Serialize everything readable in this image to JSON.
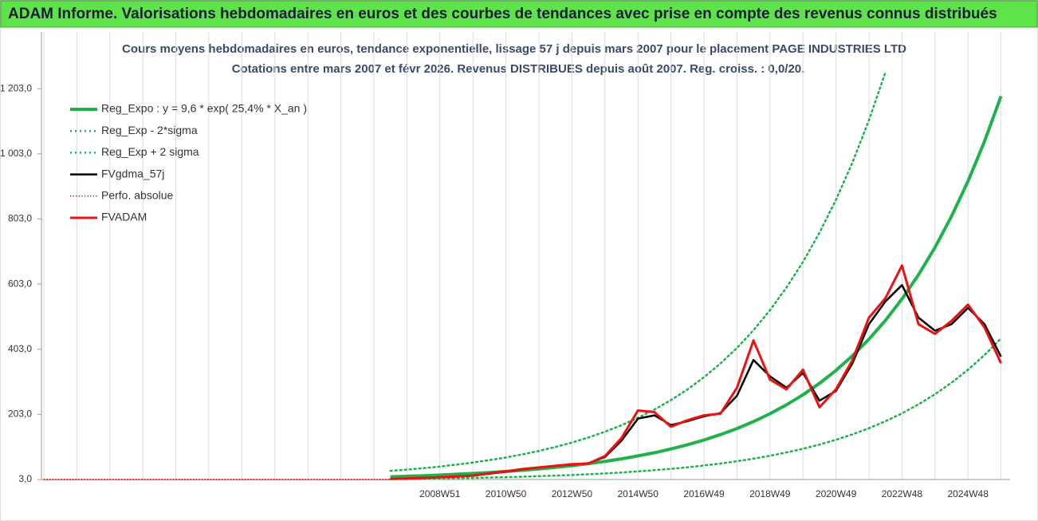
{
  "header": {
    "title": "ADAM Informe. Valorisations hebdomadaires en euros et des courbes de tendances avec prise en compte des revenus connus distribués"
  },
  "chart_data": {
    "type": "line",
    "title": "Cours moyens hebdomadaires en euros, tendance exponentielle, lissage 57 j depuis mars 2007 pour le placement PAGE INDUSTRIES LTD",
    "subtitle": "Cotations entre mars 2007 et févr 2026. Revenus DISTRIBUES depuis août 2007. Reg. croiss. : 0,0/20.",
    "categories": [
      null,
      null,
      null,
      null,
      null,
      null,
      null,
      null,
      null,
      null,
      null,
      null,
      null,
      null,
      null,
      null,
      null,
      null,
      null,
      null,
      null,
      null,
      null,
      null,
      "2008W51",
      null,
      null,
      null,
      "2010W50",
      null,
      null,
      null,
      "2012W50",
      null,
      null,
      null,
      "2014W50",
      null,
      null,
      null,
      "2016W49",
      null,
      null,
      null,
      "2018W49",
      null,
      null,
      null,
      "2020W49",
      null,
      null,
      null,
      "2022W48",
      null,
      null,
      null,
      "2024W48",
      null,
      null
    ],
    "ylim": [
      3,
      1300
    ],
    "yticks": [
      {
        "value": 3,
        "label": "3,0"
      },
      {
        "value": 203,
        "label": "203,0"
      },
      {
        "value": 403,
        "label": "403,0"
      },
      {
        "value": 603,
        "label": "603,0"
      },
      {
        "value": 803,
        "label": "803,0"
      },
      {
        "value": 1003,
        "label": "1 003,0"
      },
      {
        "value": 1203,
        "label": "1 203,0"
      }
    ],
    "grid": "vertical",
    "legend": "upper left",
    "series": [
      {
        "name": "Reg_Expo : y = 9,6 * exp( 25,4% *  X_an )",
        "color": "#1fb24a",
        "style": "solid",
        "width": 4,
        "values": [
          null,
          null,
          null,
          null,
          null,
          null,
          null,
          null,
          null,
          null,
          null,
          null,
          null,
          null,
          null,
          null,
          null,
          null,
          null,
          null,
          null,
          11.6,
          13.1,
          14.8,
          16.8,
          19.1,
          21.6,
          24.5,
          27.7,
          31.4,
          35.6,
          40.4,
          45.7,
          51.8,
          58.7,
          66.5,
          75.4,
          85.4,
          96.8,
          109.7,
          124.3,
          140.9,
          159.6,
          180.9,
          205.0,
          232.3,
          263.2,
          298.3,
          338.0,
          383.0,
          434.0,
          491.8,
          557.3,
          631.6,
          715.7,
          811.0,
          918.9,
          1041.3,
          1179.9
        ]
      },
      {
        "name": "Reg_Exp - 2*sigma",
        "color": "#1fb24a",
        "style": "dotted",
        "width": 2.5,
        "values": [
          null,
          null,
          null,
          null,
          null,
          null,
          null,
          null,
          null,
          null,
          null,
          null,
          null,
          null,
          null,
          null,
          null,
          null,
          null,
          null,
          null,
          4.3,
          4.8,
          5.5,
          6.2,
          7.1,
          8.0,
          9.1,
          10.2,
          11.6,
          13.2,
          14.9,
          16.9,
          19.2,
          21.7,
          24.6,
          27.9,
          31.6,
          35.8,
          40.6,
          46.0,
          52.1,
          59.1,
          66.9,
          75.9,
          86.0,
          97.4,
          110.4,
          125.1,
          141.7,
          160.6,
          182.0,
          206.2,
          233.7,
          264.8,
          300.1,
          340.0,
          385.3,
          436.6
        ]
      },
      {
        "name": "Reg_Exp + 2 sigma",
        "color": "#1fb24a",
        "style": "dotted",
        "width": 2.5,
        "values": [
          null,
          null,
          null,
          null,
          null,
          null,
          null,
          null,
          null,
          null,
          null,
          null,
          null,
          null,
          null,
          null,
          null,
          null,
          null,
          null,
          null,
          29.6,
          33.4,
          37.7,
          42.8,
          48.7,
          55.1,
          62.5,
          70.6,
          80.1,
          90.8,
          103.0,
          116.5,
          132.1,
          149.7,
          169.6,
          192.3,
          217.8,
          246.8,
          279.7,
          317.0,
          359.3,
          407.0,
          461.3,
          522.8,
          592.4,
          671.2,
          760.7,
          861.9,
          976.7,
          1106.7,
          1254.1,
          null,
          null,
          null,
          null,
          null,
          null,
          null
        ]
      },
      {
        "name": "FVgdma_57j",
        "color": "#000000",
        "style": "solid",
        "width": 2.5,
        "values": [
          null,
          null,
          null,
          null,
          null,
          null,
          null,
          null,
          null,
          null,
          null,
          null,
          null,
          null,
          null,
          null,
          null,
          null,
          null,
          null,
          null,
          5,
          6,
          8,
          10,
          12,
          15,
          21,
          27,
          34,
          40,
          45,
          49,
          53,
          72,
          122,
          190,
          200,
          170,
          182,
          197,
          207,
          260,
          370,
          320,
          285,
          330,
          245,
          275,
          360,
          480,
          550,
          600,
          500,
          460,
          480,
          530,
          480,
          380
        ]
      },
      {
        "name": "Perfo. absolue",
        "color": "#e00000",
        "style": "dotted",
        "width": 1.5,
        "values": [
          3,
          3,
          3,
          3,
          3,
          3,
          3,
          3,
          3,
          3,
          3,
          3,
          3,
          3,
          3,
          3,
          3,
          3,
          3,
          3,
          3,
          3,
          null,
          null,
          null,
          null,
          null,
          null,
          null,
          null,
          null,
          null,
          null,
          null,
          null,
          null,
          null,
          null,
          null,
          null,
          null,
          null,
          null,
          null,
          null,
          null,
          null,
          null,
          null,
          null,
          null,
          null,
          null,
          null,
          null,
          null,
          null,
          null,
          null
        ]
      },
      {
        "name": "FVADAM",
        "color": "#ee1111",
        "style": "solid",
        "width": 3,
        "values": [
          null,
          null,
          null,
          null,
          null,
          null,
          null,
          null,
          null,
          null,
          null,
          null,
          null,
          null,
          null,
          null,
          null,
          null,
          null,
          null,
          null,
          5,
          6,
          8,
          10,
          12,
          15,
          22,
          28,
          35,
          40,
          45,
          50,
          52,
          75,
          130,
          215,
          210,
          165,
          185,
          200,
          205,
          285,
          430,
          310,
          280,
          340,
          225,
          280,
          370,
          500,
          560,
          660,
          480,
          450,
          490,
          540,
          470,
          360
        ]
      }
    ]
  }
}
